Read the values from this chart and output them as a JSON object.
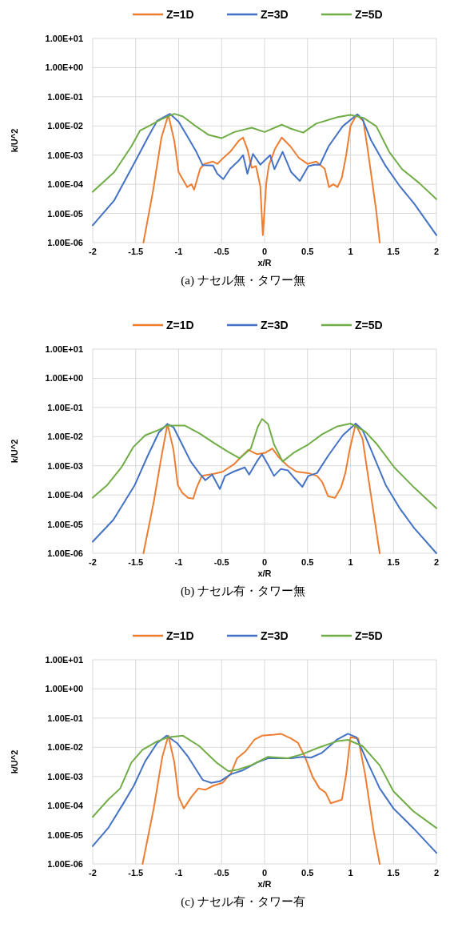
{
  "chart_data": [
    {
      "type": "line",
      "xlabel": "x/R",
      "ylabel": "k/U^2",
      "annotations": [
        "(a) ナセル無・タワー無"
      ],
      "log": "y",
      "grid": true,
      "legend": "top",
      "xlim": [
        -2,
        2
      ],
      "xticks": [
        -2,
        -1.5,
        -1,
        -0.5,
        0,
        0.5,
        1,
        1.5,
        2
      ],
      "ylim": [
        1e-06,
        10
      ],
      "yticks": [
        {
          "value": 1e-06,
          "label": "1.00E-06"
        },
        {
          "value": 1e-05,
          "label": "1.00E-05"
        },
        {
          "value": 0.0001,
          "label": "1.00E-04"
        },
        {
          "value": 0.001,
          "label": "1.00E-03"
        },
        {
          "value": 0.01,
          "label": "1.00E-02"
        },
        {
          "value": 0.1,
          "label": "1.00E-01"
        },
        {
          "value": 1,
          "label": "1.00E+00"
        },
        {
          "value": 10,
          "label": "1.00E+01"
        }
      ],
      "series": [
        {
          "name": "Z=1D",
          "color": "#ed7d31",
          "x": [
            -1.41,
            -1.3,
            -1.2,
            -1.12,
            -1.05,
            -1.0,
            -0.9,
            -0.85,
            -0.82,
            -0.75,
            -0.7,
            -0.6,
            -0.55,
            -0.5,
            -0.4,
            -0.3,
            -0.25,
            -0.2,
            -0.15,
            -0.1,
            -0.05,
            -0.02,
            0.02,
            0.05,
            0.12,
            0.2,
            0.3,
            0.4,
            0.5,
            0.6,
            0.7,
            0.75,
            0.8,
            0.85,
            0.9,
            0.95,
            1.0,
            1.07,
            1.15,
            1.2,
            1.3,
            1.34
          ],
          "values": [
            1e-06,
            5.5e-05,
            0.004,
            0.024,
            0.003,
            0.00026,
            8e-05,
            0.0001,
            6.5e-05,
            0.00034,
            0.0005,
            0.0006,
            0.0005,
            0.0007,
            0.0013,
            0.0031,
            0.004,
            0.0016,
            0.00037,
            0.00042,
            8.6e-05,
            1.8e-06,
            0.00011,
            0.00045,
            0.0016,
            0.004,
            0.002,
            0.0008,
            0.0005,
            0.0006,
            0.00034,
            8e-05,
            0.0001,
            8e-05,
            0.00017,
            0.001,
            0.01,
            0.024,
            0.015,
            0.0016,
            1.2e-05,
            1e-06
          ]
        },
        {
          "name": "Z=3D",
          "color": "#4472c4",
          "x": [
            -2,
            -1.75,
            -1.5,
            -1.35,
            -1.25,
            -1.1,
            -1.0,
            -0.9,
            -0.8,
            -0.72,
            -0.6,
            -0.55,
            -0.48,
            -0.4,
            -0.3,
            -0.25,
            -0.2,
            -0.135,
            -0.05,
            0.065,
            0.115,
            0.21,
            0.31,
            0.41,
            0.51,
            0.58,
            0.645,
            0.745,
            0.91,
            1.08,
            1.14,
            1.24,
            1.41,
            1.575,
            1.74,
            2.0
          ],
          "values": [
            3.9e-06,
            2.8e-05,
            0.00065,
            0.0045,
            0.015,
            0.026,
            0.014,
            0.0045,
            0.0014,
            0.00045,
            0.00044,
            0.00023,
            0.00015,
            0.00034,
            0.00065,
            0.001,
            0.00023,
            0.0011,
            0.00047,
            0.001,
            0.00033,
            0.0013,
            0.00026,
            0.00013,
            0.00042,
            0.00047,
            0.00047,
            0.002,
            0.0098,
            0.025,
            0.017,
            0.0032,
            0.00042,
            8.5e-05,
            2.2e-05,
            1.8e-06
          ]
        },
        {
          "name": "Z=5D",
          "color": "#70ad47",
          "x": [
            -2,
            -1.75,
            -1.55,
            -1.45,
            -1.35,
            -1.2,
            -1.05,
            -0.95,
            -0.8,
            -0.65,
            -0.5,
            -0.35,
            -0.15,
            0,
            0.2,
            0.3,
            0.45,
            0.6,
            0.85,
            1.0,
            1.15,
            1.3,
            1.45,
            1.6,
            1.8,
            2.0
          ],
          "values": [
            5.5e-05,
            0.00026,
            0.002,
            0.0069,
            0.0098,
            0.017,
            0.026,
            0.021,
            0.0098,
            0.0049,
            0.0038,
            0.0062,
            0.0087,
            0.0062,
            0.011,
            0.0082,
            0.0059,
            0.012,
            0.02,
            0.024,
            0.019,
            0.0098,
            0.0013,
            0.00033,
            0.00011,
            3.1e-05
          ]
        }
      ]
    },
    {
      "type": "line",
      "xlabel": "x/R",
      "ylabel": "k/U^2",
      "annotations": [
        "(b) ナセル有・タワー無"
      ],
      "log": "y",
      "grid": true,
      "legend": "top",
      "xlim": [
        -2,
        2
      ],
      "xticks": [
        -2,
        -1.5,
        -1,
        -0.5,
        0,
        0.5,
        1,
        1.5,
        2
      ],
      "ylim": [
        1e-06,
        10
      ],
      "yticks": [
        {
          "value": 1e-06,
          "label": "1.00E-06"
        },
        {
          "value": 1e-05,
          "label": "1.00E-05"
        },
        {
          "value": 0.0001,
          "label": "1.00E-04"
        },
        {
          "value": 0.001,
          "label": "1.00E-03"
        },
        {
          "value": 0.01,
          "label": "1.00E-02"
        },
        {
          "value": 0.1,
          "label": "1.00E-01"
        },
        {
          "value": 1,
          "label": "1.00E+00"
        },
        {
          "value": 10,
          "label": "1.00E+01"
        }
      ],
      "series": [
        {
          "name": "Z=1D",
          "color": "#ed7d31",
          "x": [
            -1.41,
            -1.29,
            -1.21,
            -1.13,
            -1.06,
            -1.01,
            -0.96,
            -0.89,
            -0.83,
            -0.79,
            -0.73,
            -0.59,
            -0.49,
            -0.36,
            -0.26,
            -0.19,
            -0.09,
            0.01,
            0.09,
            0.17,
            0.27,
            0.37,
            0.51,
            0.61,
            0.67,
            0.74,
            0.82,
            0.89,
            0.94,
            0.99,
            1.06,
            1.14,
            1.24,
            1.34
          ],
          "values": [
            1e-06,
            5.7e-05,
            0.0014,
            0.027,
            0.0035,
            0.00022,
            0.00012,
            8e-05,
            7.5e-05,
            0.00018,
            0.00045,
            0.00053,
            0.00062,
            0.0011,
            0.0022,
            0.0035,
            0.0025,
            0.0028,
            0.0039,
            0.0019,
            0.00098,
            0.00063,
            0.00056,
            0.00045,
            0.00028,
            9e-05,
            8e-05,
            0.00018,
            0.00056,
            0.0035,
            0.027,
            0.0085,
            9e-05,
            1e-06
          ]
        },
        {
          "name": "Z=3D",
          "color": "#4472c4",
          "x": [
            -2,
            -1.76,
            -1.51,
            -1.36,
            -1.23,
            -1.13,
            -1.06,
            -0.96,
            -0.86,
            -0.76,
            -0.69,
            -0.61,
            -0.52,
            -0.46,
            -0.36,
            -0.23,
            -0.18,
            -0.09,
            -0.03,
            0.04,
            0.11,
            0.19,
            0.27,
            0.34,
            0.44,
            0.51,
            0.61,
            0.74,
            0.91,
            1.06,
            1.14,
            1.24,
            1.41,
            1.57,
            1.74,
            2.0
          ],
          "values": [
            2.5e-06,
            1.4e-05,
            0.00022,
            0.0022,
            0.014,
            0.027,
            0.021,
            0.0054,
            0.0014,
            0.00056,
            0.00032,
            0.0005,
            0.00016,
            0.00045,
            0.00063,
            0.00088,
            0.0005,
            0.0014,
            0.0025,
            0.0011,
            0.00045,
            0.00078,
            0.0007,
            0.0004,
            0.00019,
            0.00045,
            0.00056,
            0.0022,
            0.011,
            0.028,
            0.017,
            0.0035,
            0.00022,
            3.6e-05,
            7.4e-06,
            1e-06
          ]
        },
        {
          "name": "Z=5D",
          "color": "#70ad47",
          "x": [
            -2,
            -1.83,
            -1.66,
            -1.53,
            -1.39,
            -1.23,
            -1.13,
            -0.93,
            -0.76,
            -0.59,
            -0.43,
            -0.29,
            -0.16,
            -0.08,
            -0.03,
            0.04,
            0.11,
            0.21,
            0.34,
            0.51,
            0.67,
            0.84,
            1.0,
            1.17,
            1.31,
            1.51,
            1.74,
            2.0
          ],
          "values": [
            8.1e-05,
            0.00022,
            0.00093,
            0.0043,
            0.011,
            0.017,
            0.024,
            0.024,
            0.013,
            0.0061,
            0.0031,
            0.0018,
            0.0039,
            0.021,
            0.04,
            0.027,
            0.0054,
            0.0014,
            0.0028,
            0.0054,
            0.012,
            0.022,
            0.028,
            0.015,
            0.0054,
            0.00088,
            0.00018,
            3.5e-05
          ]
        }
      ]
    },
    {
      "type": "line",
      "xlabel": "x/R",
      "ylabel": "k/U^2",
      "annotations": [
        "(c) ナセル有・タワー有"
      ],
      "log": "y",
      "grid": true,
      "legend": "top",
      "xlim": [
        -2,
        2
      ],
      "xticks": [
        -2,
        -1.5,
        -1,
        -0.5,
        0,
        0.5,
        1,
        1.5,
        2
      ],
      "ylim": [
        1e-06,
        10
      ],
      "yticks": [
        {
          "value": 1e-06,
          "label": "1.00E-06"
        },
        {
          "value": 1e-05,
          "label": "1.00E-05"
        },
        {
          "value": 0.0001,
          "label": "1.00E-04"
        },
        {
          "value": 0.001,
          "label": "1.00E-03"
        },
        {
          "value": 0.01,
          "label": "1.00E-02"
        },
        {
          "value": 0.1,
          "label": "1.00E-01"
        },
        {
          "value": 1,
          "label": "1.00E+00"
        },
        {
          "value": 10,
          "label": "1.00E+01"
        }
      ],
      "series": [
        {
          "name": "Z=1D",
          "color": "#ed7d31",
          "x": [
            -1.42,
            -1.29,
            -1.19,
            -1.12,
            -1.05,
            -1.0,
            -0.94,
            -0.85,
            -0.77,
            -0.69,
            -0.59,
            -0.49,
            -0.39,
            -0.32,
            -0.22,
            -0.12,
            -0.03,
            0.11,
            0.19,
            0.31,
            0.39,
            0.47,
            0.56,
            0.64,
            0.71,
            0.77,
            0.84,
            0.9,
            0.95,
            1.0,
            1.09,
            1.17,
            1.27,
            1.34
          ],
          "values": [
            1e-06,
            8e-05,
            0.0047,
            0.025,
            0.003,
            0.0002,
            8e-05,
            0.0002,
            0.00039,
            0.00035,
            0.00049,
            0.0006,
            0.0013,
            0.0042,
            0.0073,
            0.018,
            0.025,
            0.027,
            0.029,
            0.02,
            0.014,
            0.0047,
            0.00096,
            0.00039,
            0.00028,
            0.00012,
            0.00014,
            0.00016,
            0.0012,
            0.022,
            0.02,
            0.0012,
            1.3e-05,
            1e-06
          ]
        },
        {
          "name": "Z=3D",
          "color": "#4472c4",
          "x": [
            -2,
            -1.82,
            -1.65,
            -1.52,
            -1.39,
            -1.25,
            -1.14,
            -1.02,
            -0.89,
            -0.72,
            -0.62,
            -0.52,
            -0.39,
            -0.26,
            -0.09,
            0.04,
            0.31,
            0.44,
            0.54,
            0.67,
            0.84,
            0.97,
            1.07,
            1.2,
            1.34,
            1.5,
            1.73,
            2.0
          ],
          "values": [
            4.1e-06,
            1.7e-05,
            0.00011,
            0.00049,
            0.0033,
            0.014,
            0.025,
            0.014,
            0.0047,
            0.00076,
            0.0006,
            0.00068,
            0.0012,
            0.0016,
            0.003,
            0.0042,
            0.0042,
            0.0047,
            0.0044,
            0.0065,
            0.018,
            0.029,
            0.022,
            0.003,
            0.00039,
            8e-05,
            1.7e-05,
            2.4e-06
          ]
        },
        {
          "name": "Z=5D",
          "color": "#70ad47",
          "x": [
            -2,
            -1.82,
            -1.68,
            -1.55,
            -1.42,
            -1.25,
            -1.12,
            -0.95,
            -0.76,
            -0.56,
            -0.42,
            -0.31,
            -0.16,
            0.04,
            0.27,
            0.44,
            0.64,
            0.84,
            0.97,
            1.14,
            1.34,
            1.5,
            1.73,
            2.0
          ],
          "values": [
            4.1e-05,
            0.00016,
            0.00039,
            0.003,
            0.0082,
            0.016,
            0.022,
            0.025,
            0.011,
            0.003,
            0.0015,
            0.0017,
            0.0024,
            0.0047,
            0.0042,
            0.0058,
            0.01,
            0.016,
            0.018,
            0.011,
            0.0024,
            0.00031,
            6.5e-05,
            1.7e-05
          ]
        }
      ]
    }
  ]
}
